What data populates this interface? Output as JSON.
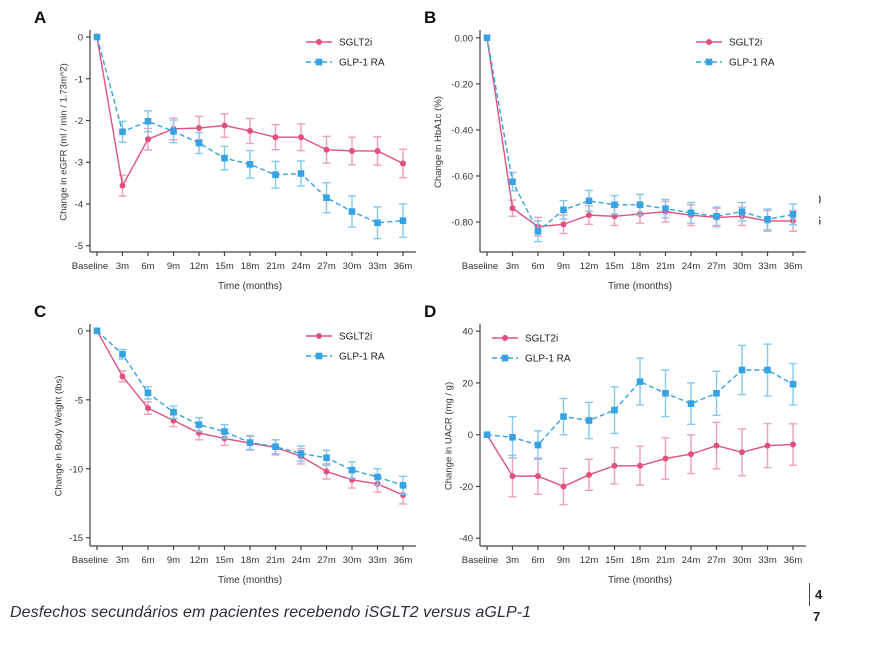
{
  "figure": {
    "caption": "Desfechos secundários em pacientes recebendo iSGLT2 versus aGLP-1",
    "edge_fragments": {
      "mid_top": "0",
      "mid_bottom": "6",
      "page_top": "4",
      "page_bottom": "7"
    }
  },
  "colors": {
    "sglt2i": "#e0527c",
    "sglt2i_error": "#f0a0ba",
    "glp1": "#35a2e4",
    "glp1_error": "#84c9f0",
    "axis": "#444444",
    "tick_text": "#333333"
  },
  "chart_data": [
    {
      "panel": "A",
      "type": "line",
      "ylabel": "Change in eGFR (ml / min / 1.73m^2)",
      "xlabel": "Time (months)",
      "categories": [
        "Baseline",
        "3m",
        "6m",
        "9m",
        "12m",
        "15m",
        "18m",
        "21m",
        "24m",
        "27m",
        "30m",
        "33m",
        "36m"
      ],
      "ylim": [
        -5.15,
        0.12
      ],
      "y_ticks": [
        0,
        -1,
        -2,
        -3,
        -4,
        -5
      ],
      "y_tick_labels": [
        "0",
        "-1",
        "-2",
        "-3",
        "-4",
        "-5"
      ],
      "grid": false,
      "legend_position": "top-right",
      "series": [
        {
          "name": "SGLT2i",
          "color": "#e0527c",
          "error_color": "#f0a0ba",
          "marker": "circle",
          "line": "solid",
          "values": [
            0,
            -3.56,
            -2.45,
            -2.2,
            -2.18,
            -2.12,
            -2.25,
            -2.4,
            -2.4,
            -2.7,
            -2.73,
            -2.73,
            -3.03
          ],
          "errors": [
            0,
            0.25,
            0.26,
            0.26,
            0.28,
            0.28,
            0.3,
            0.3,
            0.32,
            0.32,
            0.33,
            0.34,
            0.34
          ]
        },
        {
          "name": "GLP-1 RA",
          "color": "#35a2e4",
          "error_color": "#84c9f0",
          "marker": "square",
          "line": "dashed",
          "values": [
            0,
            -2.27,
            -2.02,
            -2.26,
            -2.54,
            -2.9,
            -3.05,
            -3.3,
            -3.27,
            -3.85,
            -4.18,
            -4.45,
            -4.4
          ],
          "errors": [
            0,
            0.25,
            0.25,
            0.27,
            0.25,
            0.28,
            0.33,
            0.32,
            0.3,
            0.36,
            0.37,
            0.38,
            0.4
          ]
        }
      ]
    },
    {
      "panel": "B",
      "type": "line",
      "ylabel": "Change in HbA1c (%)",
      "xlabel": "Time (months)",
      "categories": [
        "Baseline",
        "3m",
        "6m",
        "9m",
        "12m",
        "15m",
        "18m",
        "21m",
        "24m",
        "27m",
        "30m",
        "33m",
        "36m"
      ],
      "ylim": [
        -0.93,
        0.025
      ],
      "y_ticks": [
        0,
        -0.2,
        -0.4,
        -0.6,
        -0.8
      ],
      "y_tick_labels": [
        "0.00",
        "-0.20",
        "-0.40",
        "-0.60",
        "-0.80"
      ],
      "grid": false,
      "legend_position": "top-right",
      "series": [
        {
          "name": "SGLT2i",
          "color": "#e0527c",
          "error_color": "#f0a0ba",
          "marker": "circle",
          "line": "solid",
          "values": [
            0,
            -0.74,
            -0.82,
            -0.81,
            -0.77,
            -0.775,
            -0.765,
            -0.755,
            -0.77,
            -0.78,
            -0.775,
            -0.795,
            -0.795
          ],
          "errors": [
            0,
            0.035,
            0.04,
            0.04,
            0.04,
            0.04,
            0.04,
            0.045,
            0.045,
            0.04,
            0.04,
            0.045,
            0.045
          ]
        },
        {
          "name": "GLP-1 RA",
          "color": "#35a2e4",
          "error_color": "#84c9f0",
          "marker": "square",
          "line": "dashed",
          "values": [
            0,
            -0.625,
            -0.84,
            -0.747,
            -0.708,
            -0.725,
            -0.725,
            -0.742,
            -0.76,
            -0.775,
            -0.755,
            -0.788,
            -0.767
          ],
          "errors": [
            0,
            0.04,
            0.045,
            0.04,
            0.045,
            0.04,
            0.045,
            0.04,
            0.045,
            0.04,
            0.04,
            0.045,
            0.045
          ]
        }
      ]
    },
    {
      "panel": "C",
      "type": "line",
      "ylabel": "Change in Body Weight (lbs)",
      "xlabel": "Time (months)",
      "categories": [
        "Baseline",
        "3m",
        "6m",
        "9m",
        "12m",
        "15m",
        "18m",
        "21m",
        "24m",
        "27m",
        "30m",
        "33m",
        "36m"
      ],
      "ylim": [
        -15.6,
        0.35
      ],
      "y_ticks": [
        0,
        -5,
        -10,
        -15
      ],
      "y_tick_labels": [
        "0",
        "-5",
        "-10",
        "-15"
      ],
      "grid": false,
      "legend_position": "top-right",
      "series": [
        {
          "name": "SGLT2i",
          "color": "#e0527c",
          "error_color": "#f0a0ba",
          "marker": "circle",
          "line": "solid",
          "values": [
            0,
            -3.3,
            -5.6,
            -6.5,
            -7.4,
            -7.8,
            -8.15,
            -8.45,
            -9.1,
            -10.2,
            -10.8,
            -11.1,
            -11.9
          ],
          "errors": [
            0,
            0.4,
            0.45,
            0.45,
            0.5,
            0.5,
            0.5,
            0.55,
            0.55,
            0.55,
            0.6,
            0.6,
            0.65
          ]
        },
        {
          "name": "GLP-1 RA",
          "color": "#35a2e4",
          "error_color": "#84c9f0",
          "marker": "square",
          "line": "dashed",
          "values": [
            0,
            -1.7,
            -4.5,
            -5.9,
            -6.8,
            -7.3,
            -8.1,
            -8.4,
            -8.9,
            -9.2,
            -10.1,
            -10.6,
            -11.2
          ],
          "errors": [
            0,
            0.35,
            0.45,
            0.45,
            0.5,
            0.5,
            0.5,
            0.5,
            0.55,
            0.55,
            0.6,
            0.6,
            0.65
          ]
        }
      ]
    },
    {
      "panel": "D",
      "type": "line",
      "ylabel": "Change in UACR (mg / g)",
      "xlabel": "Time (months)",
      "categories": [
        "Baseline",
        "3m",
        "6m",
        "9m",
        "12m",
        "15m",
        "18m",
        "21m",
        "24m",
        "27m",
        "30m",
        "33m",
        "36m"
      ],
      "ylim": [
        -43,
        42
      ],
      "y_ticks": [
        40,
        20,
        0,
        -20,
        -40
      ],
      "y_tick_labels": [
        "40",
        "20",
        "0",
        "-20",
        "-40"
      ],
      "grid": false,
      "legend_position": "top-left",
      "series": [
        {
          "name": "SGLT2i",
          "color": "#e0527c",
          "error_color": "#f0a0ba",
          "marker": "circle",
          "line": "solid",
          "values": [
            0,
            -16,
            -16,
            -20,
            -15.5,
            -12,
            -12,
            -9.2,
            -7.5,
            -4.2,
            -6.8,
            -4.2,
            -3.8
          ],
          "errors": [
            0,
            8,
            7,
            7,
            6,
            7,
            7.5,
            8,
            7.5,
            9,
            9,
            8.5,
            8
          ]
        },
        {
          "name": "GLP-1 RA",
          "color": "#35a2e4",
          "error_color": "#84c9f0",
          "marker": "square",
          "line": "dashed",
          "values": [
            0,
            -1,
            -4,
            7,
            5.5,
            9.5,
            20.5,
            16,
            12,
            16,
            25,
            25,
            19.5
          ],
          "errors": [
            0,
            8,
            5.5,
            7,
            7,
            9,
            9,
            9,
            8,
            8.5,
            9.5,
            10,
            8
          ]
        }
      ]
    }
  ]
}
